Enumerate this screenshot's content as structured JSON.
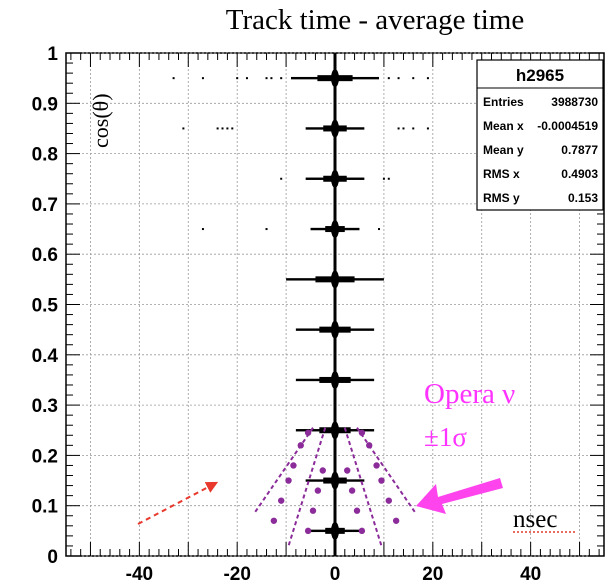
{
  "chart_data": {
    "type": "scatter",
    "title": "Track time - average time",
    "xlabel": "nsec",
    "ylabel": "cos(θ)",
    "xlim": [
      -55,
      55
    ],
    "ylim": [
      0,
      1
    ],
    "x_ticks": [
      "-40",
      "-20",
      "0",
      "20",
      "40"
    ],
    "x_tick_values": [
      -40,
      -20,
      0,
      20,
      40
    ],
    "y_ticks": [
      "0",
      "0.1",
      "0.2",
      "0.3",
      "0.4",
      "0.5",
      "0.6",
      "0.7",
      "0.8",
      "0.9",
      "1"
    ],
    "y_tick_values": [
      0,
      0.1,
      0.2,
      0.3,
      0.4,
      0.5,
      0.6,
      0.7,
      0.8,
      0.9,
      1
    ],
    "grid": true,
    "bands": [
      {
        "cos": 0.95,
        "spread": 9,
        "outliers": [
          -33,
          -27,
          -20,
          -18,
          -14,
          -13,
          -11,
          11,
          13,
          16,
          19
        ]
      },
      {
        "cos": 0.85,
        "spread": 6,
        "outliers": [
          -31,
          -24,
          -23,
          -22,
          -21,
          13,
          14,
          16,
          19
        ]
      },
      {
        "cos": 0.75,
        "spread": 6,
        "outliers": [
          -11,
          10,
          11
        ]
      },
      {
        "cos": 0.65,
        "spread": 5,
        "outliers": [
          -27,
          -14,
          9
        ]
      },
      {
        "cos": 0.55,
        "spread": 10,
        "outliers": []
      },
      {
        "cos": 0.45,
        "spread": 8,
        "outliers": []
      },
      {
        "cos": 0.35,
        "spread": 8,
        "outliers": []
      },
      {
        "cos": 0.25,
        "spread": 8,
        "outliers": []
      },
      {
        "cos": 0.15,
        "spread": 6,
        "outliers": []
      },
      {
        "cos": 0.05,
        "spread": 5,
        "outliers": []
      }
    ],
    "opera_band": {
      "label": "Opera ν",
      "sigma_label": "±1σ",
      "color": "#ff33ff",
      "dot_color": "#8b2c9a",
      "dots": [
        {
          "x": -12.5,
          "y": 0.07
        },
        {
          "x": -11,
          "y": 0.11
        },
        {
          "x": -9.5,
          "y": 0.15
        },
        {
          "x": -8.5,
          "y": 0.18
        },
        {
          "x": -7,
          "y": 0.22
        },
        {
          "x": -5.5,
          "y": 0.245
        },
        {
          "x": -5.5,
          "y": 0.05
        },
        {
          "x": -4.5,
          "y": 0.09
        },
        {
          "x": -3.5,
          "y": 0.13
        },
        {
          "x": -2.5,
          "y": 0.17
        },
        {
          "x": 2.5,
          "y": 0.17
        },
        {
          "x": 3.5,
          "y": 0.13
        },
        {
          "x": 4.5,
          "y": 0.09
        },
        {
          "x": 5.5,
          "y": 0.05
        },
        {
          "x": 5.5,
          "y": 0.245
        },
        {
          "x": 7,
          "y": 0.22
        },
        {
          "x": 8.5,
          "y": 0.18
        },
        {
          "x": 9.5,
          "y": 0.15
        },
        {
          "x": 11,
          "y": 0.11
        },
        {
          "x": 12.5,
          "y": 0.07
        }
      ]
    },
    "stats_box": {
      "name": "h2965",
      "rows": [
        {
          "label": "Entries",
          "value": "3988730"
        },
        {
          "label": "Mean x",
          "value": "-0.0004519"
        },
        {
          "label": "Mean y",
          "value": "0.7877"
        },
        {
          "label": "RMS x",
          "value": "0.4903"
        },
        {
          "label": "RMS y",
          "value": "0.153"
        }
      ]
    }
  }
}
